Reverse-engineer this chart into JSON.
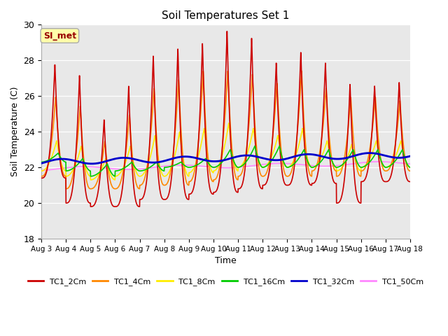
{
  "title": "Soil Temperatures Set 1",
  "xlabel": "Time",
  "ylabel": "Soil Temperature (C)",
  "ylim": [
    18,
    30
  ],
  "xlim": [
    0,
    15
  ],
  "bg_color": "#e8e8e8",
  "annotation_text": "SI_met",
  "annotation_color": "#990000",
  "annotation_bg": "#ffffaa",
  "annotation_border": "#aaaaaa",
  "xtick_labels": [
    "Aug 3",
    "Aug 4",
    "Aug 5",
    "Aug 6",
    "Aug 7",
    "Aug 8",
    "Aug 9",
    "Aug 10",
    "Aug 11",
    "Aug 12",
    "Aug 13",
    "Aug 14",
    "Aug 15",
    "Aug 16",
    "Aug 17",
    "Aug 18"
  ],
  "series": {
    "TC1_2Cm": {
      "color": "#cc0000",
      "lw": 1.2
    },
    "TC1_4Cm": {
      "color": "#ff8800",
      "lw": 1.2
    },
    "TC1_8Cm": {
      "color": "#ffee00",
      "lw": 1.2
    },
    "TC1_16Cm": {
      "color": "#00cc00",
      "lw": 1.2
    },
    "TC1_32Cm": {
      "color": "#0000cc",
      "lw": 2.0
    },
    "TC1_50Cm": {
      "color": "#ff88ff",
      "lw": 1.2
    }
  },
  "tc1_2cm_peaks": [
    27.8,
    27.2,
    24.7,
    26.6,
    28.3,
    28.7,
    29.0,
    29.7,
    29.3,
    27.9,
    28.5,
    27.9,
    26.7,
    26.6,
    26.8
  ],
  "tc1_2cm_mins": [
    21.4,
    20.0,
    19.8,
    19.8,
    20.2,
    20.2,
    20.5,
    20.6,
    20.8,
    21.0,
    21.0,
    21.1,
    20.0,
    21.2,
    21.2
  ],
  "tc1_4cm_peaks": [
    26.0,
    25.5,
    23.5,
    25.0,
    26.5,
    27.0,
    27.5,
    27.5,
    27.3,
    26.8,
    27.5,
    26.5,
    26.0,
    26.0,
    25.8
  ],
  "tc1_4cm_mins": [
    21.5,
    20.8,
    20.8,
    20.8,
    21.0,
    21.0,
    21.2,
    21.3,
    21.5,
    21.5,
    21.5,
    21.8,
    21.5,
    21.8,
    21.8
  ],
  "tc1_8cm_peaks": [
    23.5,
    23.2,
    22.5,
    23.2,
    23.8,
    24.0,
    24.2,
    24.5,
    24.2,
    23.8,
    24.2,
    23.5,
    23.3,
    23.5,
    23.5
  ],
  "tc1_8cm_mins": [
    21.8,
    21.5,
    21.3,
    21.5,
    21.5,
    21.5,
    21.7,
    21.8,
    22.0,
    22.0,
    22.0,
    22.0,
    21.8,
    22.0,
    22.0
  ],
  "tc1_16cm_peaks": [
    22.8,
    22.5,
    22.2,
    22.3,
    22.3,
    22.3,
    22.5,
    23.0,
    23.2,
    23.2,
    23.0,
    23.0,
    23.0,
    23.0,
    23.0
  ],
  "tc1_16cm_mins": [
    22.3,
    21.8,
    21.5,
    21.8,
    21.8,
    22.0,
    22.0,
    22.0,
    22.0,
    22.0,
    22.0,
    22.0,
    22.0,
    22.0,
    22.0
  ]
}
